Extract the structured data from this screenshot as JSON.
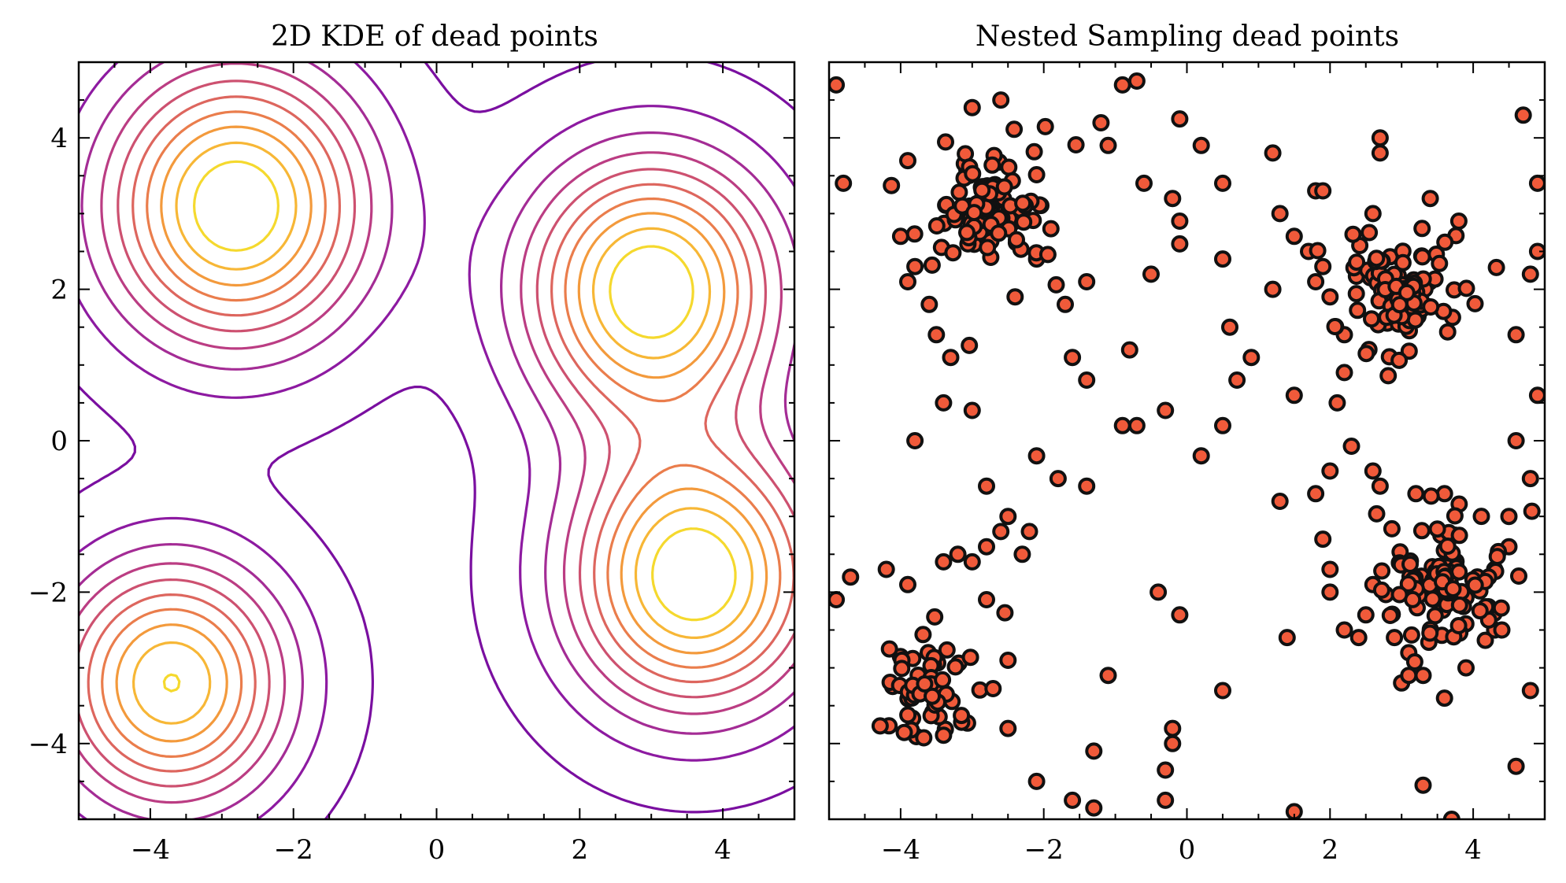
{
  "chart_data": [
    {
      "type": "contour",
      "title": "2D KDE of dead points",
      "xlim": [
        -5,
        5
      ],
      "ylim": [
        -5,
        5
      ],
      "xticks": [
        -4,
        -2,
        0,
        2,
        4
      ],
      "yticks": [
        -4,
        -2,
        0,
        2,
        4
      ],
      "xtick_labels": [
        "−4",
        "−2",
        "0",
        "2",
        "4"
      ],
      "ytick_labels": [
        "−4",
        "−2",
        "0",
        "2",
        "4"
      ],
      "colormap": "plasma",
      "density_modes": [
        {
          "x": -2.8,
          "y": 3.1
        },
        {
          "x": 3.0,
          "y": 2.0
        },
        {
          "x": 3.6,
          "y": -1.8
        },
        {
          "x": -3.7,
          "y": -3.2
        }
      ],
      "contour_colors": [
        "#7a0fa0",
        "#8d1aa1",
        "#a42c95",
        "#bb3d83",
        "#cd5170",
        "#dd665e",
        "#ea7d4c",
        "#f39a3c",
        "#f7b736",
        "#f5d92e"
      ]
    },
    {
      "type": "scatter",
      "title": "Nested Sampling dead points",
      "xlim": [
        -5,
        5
      ],
      "ylim": [
        -5,
        5
      ],
      "xticks": [
        -4,
        -2,
        0,
        2,
        4
      ],
      "yticks": [
        -4,
        -2,
        0,
        2,
        4
      ],
      "xtick_labels": [
        "−4",
        "−2",
        "0",
        "2",
        "4"
      ],
      "marker_color": "#f05a3a",
      "marker_edge_color": "#111111",
      "clusters": [
        {
          "center": [
            -2.8,
            3.1
          ],
          "approx_points": 120
        },
        {
          "center": [
            3.0,
            2.0
          ],
          "approx_points": 110
        },
        {
          "center": [
            3.6,
            -1.8
          ],
          "approx_points": 110
        },
        {
          "center": [
            -3.7,
            -3.2
          ],
          "approx_points": 60
        }
      ],
      "points": [
        [
          -4.9,
          4.7
        ],
        [
          -4.8,
          3.4
        ],
        [
          -4.7,
          -1.8
        ],
        [
          -4.9,
          -2.1
        ],
        [
          -3.0,
          4.4
        ],
        [
          -2.6,
          4.5
        ],
        [
          -1.2,
          4.2
        ],
        [
          -0.9,
          4.7
        ],
        [
          -0.7,
          4.75
        ],
        [
          -0.1,
          4.25
        ],
        [
          -3.9,
          3.7
        ],
        [
          -4.0,
          2.7
        ],
        [
          -3.8,
          2.3
        ],
        [
          -3.9,
          2.1
        ],
        [
          -3.6,
          1.8
        ],
        [
          -3.5,
          1.4
        ],
        [
          -3.3,
          1.1
        ],
        [
          -3.4,
          0.5
        ],
        [
          -3.8,
          0.0
        ],
        [
          -3.0,
          0.4
        ],
        [
          -2.4,
          1.9
        ],
        [
          -2.1,
          2.4
        ],
        [
          -1.9,
          2.8
        ],
        [
          -1.7,
          1.8
        ],
        [
          -1.6,
          1.1
        ],
        [
          -1.4,
          0.8
        ],
        [
          -1.4,
          2.1
        ],
        [
          -1.1,
          3.9
        ],
        [
          -0.8,
          1.2
        ],
        [
          -0.7,
          0.2
        ],
        [
          -0.6,
          3.4
        ],
        [
          -0.5,
          2.2
        ],
        [
          -0.2,
          3.2
        ],
        [
          -0.1,
          2.9
        ],
        [
          -0.1,
          2.6
        ],
        [
          0.2,
          3.9
        ],
        [
          0.5,
          3.4
        ],
        [
          0.5,
          2.4
        ],
        [
          0.6,
          1.5
        ],
        [
          0.7,
          0.8
        ],
        [
          0.9,
          1.1
        ],
        [
          0.5,
          0.2
        ],
        [
          0.2,
          -0.2
        ],
        [
          -0.3,
          0.4
        ],
        [
          -0.9,
          0.2
        ],
        [
          -2.1,
          -0.2
        ],
        [
          -1.8,
          -0.5
        ],
        [
          -1.4,
          -0.6
        ],
        [
          -2.8,
          -0.6
        ],
        [
          -2.5,
          -1.0
        ],
        [
          -2.6,
          -1.2
        ],
        [
          -2.3,
          -1.5
        ],
        [
          -2.2,
          -1.2
        ],
        [
          -2.8,
          -1.4
        ],
        [
          -3.0,
          -1.6
        ],
        [
          -3.2,
          -1.5
        ],
        [
          -3.4,
          -1.6
        ],
        [
          -3.9,
          -1.9
        ],
        [
          -4.2,
          -1.7
        ],
        [
          -2.8,
          -2.1
        ],
        [
          -2.5,
          -2.9
        ],
        [
          -2.5,
          -3.8
        ],
        [
          -2.1,
          -4.5
        ],
        [
          -1.6,
          -4.75
        ],
        [
          -1.3,
          -4.85
        ],
        [
          -1.3,
          -4.1
        ],
        [
          -1.1,
          -3.1
        ],
        [
          -0.4,
          -2.0
        ],
        [
          -0.1,
          -2.3
        ],
        [
          -0.2,
          -3.8
        ],
        [
          -0.2,
          -4.0
        ],
        [
          -0.3,
          -4.35
        ],
        [
          -0.3,
          -4.75
        ],
        [
          0.5,
          -3.3
        ],
        [
          1.4,
          -2.6
        ],
        [
          1.3,
          -0.8
        ],
        [
          1.5,
          -4.9
        ],
        [
          1.2,
          2.0
        ],
        [
          1.2,
          3.8
        ],
        [
          1.3,
          3.0
        ],
        [
          1.5,
          2.7
        ],
        [
          1.7,
          2.5
        ],
        [
          1.8,
          3.3
        ],
        [
          1.9,
          3.3
        ],
        [
          1.8,
          2.1
        ],
        [
          2.0,
          1.9
        ],
        [
          1.9,
          2.3
        ],
        [
          2.2,
          1.4
        ],
        [
          2.2,
          0.9
        ],
        [
          2.1,
          0.5
        ],
        [
          1.5,
          0.6
        ],
        [
          2.0,
          -0.4
        ],
        [
          1.8,
          -0.7
        ],
        [
          1.9,
          -1.3
        ],
        [
          2.0,
          -1.7
        ],
        [
          2.0,
          -2.0
        ],
        [
          2.2,
          -2.5
        ],
        [
          2.4,
          -2.6
        ],
        [
          2.5,
          -2.3
        ],
        [
          2.6,
          -1.9
        ],
        [
          3.8,
          2.9
        ],
        [
          3.4,
          3.2
        ],
        [
          2.6,
          3.0
        ],
        [
          2.7,
          3.8
        ],
        [
          2.7,
          4.0
        ],
        [
          4.7,
          4.3
        ],
        [
          4.9,
          3.4
        ],
        [
          4.8,
          2.2
        ],
        [
          4.9,
          2.5
        ],
        [
          4.6,
          1.4
        ],
        [
          4.9,
          0.6
        ],
        [
          4.6,
          0.0
        ],
        [
          4.8,
          -0.5
        ],
        [
          4.5,
          -1.0
        ],
        [
          4.5,
          -1.4
        ],
        [
          4.3,
          -1.7
        ],
        [
          4.3,
          -2.5
        ],
        [
          4.4,
          -2.5
        ],
        [
          4.6,
          -4.3
        ],
        [
          4.8,
          -3.3
        ],
        [
          3.9,
          -3.0
        ],
        [
          3.6,
          -3.4
        ],
        [
          3.3,
          -4.55
        ],
        [
          3.7,
          -5.0
        ],
        [
          3.0,
          -3.2
        ],
        [
          2.9,
          -2.6
        ],
        [
          2.6,
          -0.4
        ],
        [
          2.7,
          -0.6
        ],
        [
          3.2,
          -0.7
        ],
        [
          3.6,
          -0.7
        ],
        [
          3.1,
          -3.1
        ],
        [
          3.3,
          -3.1
        ],
        [
          3.1,
          -2.8
        ]
      ]
    }
  ]
}
